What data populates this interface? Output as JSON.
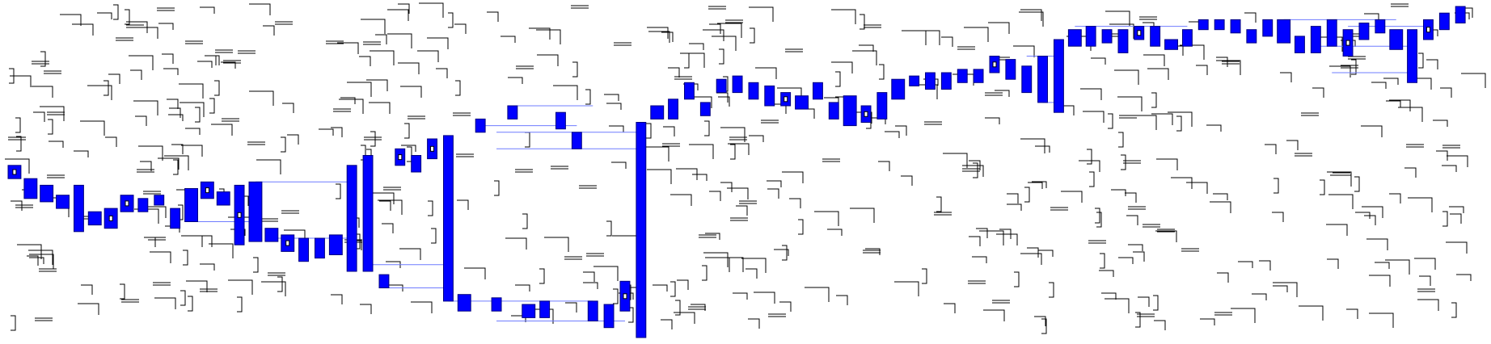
{
  "colors": {
    "background": "#ffffff",
    "bar_fill": "#0000ff",
    "bar_stroke": "#000080",
    "link": "#6f7cff",
    "glyph": "#000000"
  },
  "chart_data": {
    "type": "bar",
    "subtype": "floating-range-bars-with-connectors",
    "title": "",
    "xlabel": "",
    "ylabel": "",
    "xlim": [
      0,
      92
    ],
    "ylim": [
      0,
      100
    ],
    "grid": false,
    "legend": "none",
    "bars": [
      {
        "x": 0.5,
        "lo": 48,
        "hi": 52,
        "w": 0.8,
        "glyph": true
      },
      {
        "x": 1.5,
        "lo": 42,
        "hi": 48,
        "w": 0.8
      },
      {
        "x": 2.5,
        "lo": 41,
        "hi": 46,
        "w": 0.8
      },
      {
        "x": 3.5,
        "lo": 39,
        "hi": 43,
        "w": 0.8
      },
      {
        "x": 4.5,
        "lo": 32,
        "hi": 46,
        "w": 0.6
      },
      {
        "x": 5.5,
        "lo": 34,
        "hi": 38,
        "w": 0.8
      },
      {
        "x": 6.5,
        "lo": 33,
        "hi": 39,
        "w": 0.8,
        "glyph": true
      },
      {
        "x": 7.5,
        "lo": 38,
        "hi": 43,
        "w": 0.8,
        "glyph": true
      },
      {
        "x": 8.5,
        "lo": 38,
        "hi": 42,
        "w": 0.6
      },
      {
        "x": 9.5,
        "lo": 40,
        "hi": 43,
        "w": 0.6
      },
      {
        "x": 10.5,
        "lo": 33,
        "hi": 39,
        "w": 0.6
      },
      {
        "x": 11.5,
        "lo": 35,
        "hi": 45,
        "w": 0.8
      },
      {
        "x": 12.5,
        "lo": 42,
        "hi": 47,
        "w": 0.8,
        "glyph": true
      },
      {
        "x": 13.5,
        "lo": 40,
        "hi": 44,
        "w": 0.8
      },
      {
        "x": 14.5,
        "lo": 28,
        "hi": 46,
        "w": 0.6,
        "glyph": true
      },
      {
        "x": 15.5,
        "lo": 29,
        "hi": 47,
        "w": 0.8
      },
      {
        "x": 16.5,
        "lo": 29,
        "hi": 33,
        "w": 0.8
      },
      {
        "x": 17.5,
        "lo": 26,
        "hi": 31,
        "w": 0.8,
        "glyph": true
      },
      {
        "x": 18.5,
        "lo": 23,
        "hi": 30,
        "w": 0.6
      },
      {
        "x": 19.5,
        "lo": 24,
        "hi": 30,
        "w": 0.6
      },
      {
        "x": 20.5,
        "lo": 25,
        "hi": 31,
        "w": 0.8
      },
      {
        "x": 21.5,
        "lo": 20,
        "hi": 52,
        "w": 0.6
      },
      {
        "x": 22.5,
        "lo": 20,
        "hi": 55,
        "w": 0.6
      },
      {
        "x": 23.5,
        "lo": 15,
        "hi": 19,
        "w": 0.6
      },
      {
        "x": 24.5,
        "lo": 52,
        "hi": 57,
        "w": 0.6,
        "glyph": true
      },
      {
        "x": 25.5,
        "lo": 50,
        "hi": 55,
        "w": 0.6
      },
      {
        "x": 26.5,
        "lo": 54,
        "hi": 60,
        "w": 0.6,
        "glyph": true
      },
      {
        "x": 27.5,
        "lo": 11,
        "hi": 61,
        "w": 0.6
      },
      {
        "x": 28.5,
        "lo": 8,
        "hi": 13,
        "w": 0.8
      },
      {
        "x": 29.5,
        "lo": 62,
        "hi": 66,
        "w": 0.6
      },
      {
        "x": 30.5,
        "lo": 8,
        "hi": 12,
        "w": 0.6
      },
      {
        "x": 31.5,
        "lo": 66,
        "hi": 70,
        "w": 0.6
      },
      {
        "x": 32.5,
        "lo": 6,
        "hi": 10,
        "w": 0.8
      },
      {
        "x": 33.5,
        "lo": 6,
        "hi": 11,
        "w": 0.6
      },
      {
        "x": 34.5,
        "lo": 63,
        "hi": 68,
        "w": 0.6
      },
      {
        "x": 35.5,
        "lo": 57,
        "hi": 62,
        "w": 0.6
      },
      {
        "x": 36.5,
        "lo": 5,
        "hi": 11,
        "w": 0.6
      },
      {
        "x": 37.5,
        "lo": 3,
        "hi": 10,
        "w": 0.6
      },
      {
        "x": 38.5,
        "lo": 8,
        "hi": 17,
        "w": 0.6,
        "glyph": true
      },
      {
        "x": 39.5,
        "lo": 0,
        "hi": 65,
        "w": 0.6
      },
      {
        "x": 40.5,
        "lo": 66,
        "hi": 70,
        "w": 0.8
      },
      {
        "x": 41.5,
        "lo": 66,
        "hi": 72,
        "w": 0.6
      },
      {
        "x": 42.5,
        "lo": 72,
        "hi": 77,
        "w": 0.6
      },
      {
        "x": 43.5,
        "lo": 67,
        "hi": 71,
        "w": 0.6
      },
      {
        "x": 44.5,
        "lo": 74,
        "hi": 78,
        "w": 0.6
      },
      {
        "x": 45.5,
        "lo": 74,
        "hi": 79,
        "w": 0.6
      },
      {
        "x": 46.5,
        "lo": 72,
        "hi": 77,
        "w": 0.6
      },
      {
        "x": 47.5,
        "lo": 70,
        "hi": 76,
        "w": 0.6
      },
      {
        "x": 48.5,
        "lo": 70,
        "hi": 74,
        "w": 0.6,
        "glyph": true
      },
      {
        "x": 49.5,
        "lo": 69,
        "hi": 73,
        "w": 0.8
      },
      {
        "x": 50.5,
        "lo": 72,
        "hi": 77,
        "w": 0.6
      },
      {
        "x": 51.5,
        "lo": 66,
        "hi": 71,
        "w": 0.6
      },
      {
        "x": 52.5,
        "lo": 64,
        "hi": 73,
        "w": 0.8
      },
      {
        "x": 53.5,
        "lo": 65,
        "hi": 70,
        "w": 0.6,
        "glyph": true
      },
      {
        "x": 54.5,
        "lo": 66,
        "hi": 74,
        "w": 0.6
      },
      {
        "x": 55.5,
        "lo": 72,
        "hi": 78,
        "w": 0.8
      },
      {
        "x": 56.5,
        "lo": 76,
        "hi": 79,
        "w": 0.6
      },
      {
        "x": 57.5,
        "lo": 75,
        "hi": 80,
        "w": 0.6
      },
      {
        "x": 58.5,
        "lo": 75,
        "hi": 80,
        "w": 0.6
      },
      {
        "x": 59.5,
        "lo": 77,
        "hi": 81,
        "w": 0.6
      },
      {
        "x": 60.5,
        "lo": 77,
        "hi": 81,
        "w": 0.6
      },
      {
        "x": 61.5,
        "lo": 80,
        "hi": 85,
        "w": 0.6,
        "glyph": true
      },
      {
        "x": 62.5,
        "lo": 78,
        "hi": 84,
        "w": 0.6
      },
      {
        "x": 63.5,
        "lo": 74,
        "hi": 82,
        "w": 0.6
      },
      {
        "x": 64.5,
        "lo": 71,
        "hi": 85,
        "w": 0.6
      },
      {
        "x": 65.5,
        "lo": 68,
        "hi": 90,
        "w": 0.6
      },
      {
        "x": 66.5,
        "lo": 88,
        "hi": 93,
        "w": 0.8
      },
      {
        "x": 67.5,
        "lo": 88,
        "hi": 94,
        "w": 0.6
      },
      {
        "x": 68.5,
        "lo": 89,
        "hi": 93,
        "w": 0.6
      },
      {
        "x": 69.5,
        "lo": 86,
        "hi": 93,
        "w": 0.6
      },
      {
        "x": 70.5,
        "lo": 90,
        "hi": 94,
        "w": 0.6,
        "glyph": true
      },
      {
        "x": 71.5,
        "lo": 88,
        "hi": 94,
        "w": 0.6
      },
      {
        "x": 72.5,
        "lo": 87,
        "hi": 90,
        "w": 0.8
      },
      {
        "x": 73.5,
        "lo": 88,
        "hi": 93,
        "w": 0.6
      },
      {
        "x": 74.5,
        "lo": 93,
        "hi": 96,
        "w": 0.6
      },
      {
        "x": 75.5,
        "lo": 93,
        "hi": 96,
        "w": 0.6
      },
      {
        "x": 76.5,
        "lo": 92,
        "hi": 96,
        "w": 0.6
      },
      {
        "x": 77.5,
        "lo": 89,
        "hi": 93,
        "w": 0.6
      },
      {
        "x": 78.5,
        "lo": 91,
        "hi": 96,
        "w": 0.6
      },
      {
        "x": 79.5,
        "lo": 89,
        "hi": 96,
        "w": 0.8
      },
      {
        "x": 80.5,
        "lo": 86,
        "hi": 91,
        "w": 0.6
      },
      {
        "x": 81.5,
        "lo": 86,
        "hi": 94,
        "w": 0.6
      },
      {
        "x": 82.5,
        "lo": 88,
        "hi": 96,
        "w": 0.6
      },
      {
        "x": 83.5,
        "lo": 85,
        "hi": 93,
        "w": 0.6,
        "glyph": true
      },
      {
        "x": 84.5,
        "lo": 90,
        "hi": 95,
        "w": 0.6
      },
      {
        "x": 85.5,
        "lo": 92,
        "hi": 96,
        "w": 0.6
      },
      {
        "x": 86.5,
        "lo": 87,
        "hi": 93,
        "w": 0.8
      },
      {
        "x": 87.5,
        "lo": 77,
        "hi": 93,
        "w": 0.6
      },
      {
        "x": 88.5,
        "lo": 90,
        "hi": 96,
        "w": 0.6,
        "glyph": true
      },
      {
        "x": 89.5,
        "lo": 93,
        "hi": 98,
        "w": 0.6
      },
      {
        "x": 90.5,
        "lo": 95,
        "hi": 100,
        "w": 0.6
      }
    ],
    "links": [
      {
        "x1": 15.5,
        "y1": 47,
        "x2": 21.5,
        "y2": 47
      },
      {
        "x1": 11.5,
        "y1": 35,
        "x2": 15.5,
        "y2": 35
      },
      {
        "x1": 16.5,
        "y1": 30,
        "x2": 21.5,
        "y2": 30
      },
      {
        "x1": 22.5,
        "y1": 22,
        "x2": 27.5,
        "y2": 22
      },
      {
        "x1": 23.5,
        "y1": 15,
        "x2": 27.5,
        "y2": 15
      },
      {
        "x1": 27.5,
        "y1": 11,
        "x2": 36.5,
        "y2": 11
      },
      {
        "x1": 29.5,
        "y1": 64,
        "x2": 35.5,
        "y2": 64
      },
      {
        "x1": 30.5,
        "y1": 62,
        "x2": 39.5,
        "y2": 62
      },
      {
        "x1": 30.5,
        "y1": 57,
        "x2": 39.5,
        "y2": 57
      },
      {
        "x1": 31.5,
        "y1": 70,
        "x2": 36.5,
        "y2": 70
      },
      {
        "x1": 30.5,
        "y1": 5,
        "x2": 38.5,
        "y2": 5
      },
      {
        "x1": 63.5,
        "y1": 85,
        "x2": 65.5,
        "y2": 85
      },
      {
        "x1": 64.5,
        "y1": 71,
        "x2": 65.5,
        "y2": 71
      },
      {
        "x1": 66.5,
        "y1": 94,
        "x2": 73.5,
        "y2": 94
      },
      {
        "x1": 79.5,
        "y1": 96,
        "x2": 86.5,
        "y2": 96
      },
      {
        "x1": 81.5,
        "y1": 88,
        "x2": 87.5,
        "y2": 88
      },
      {
        "x1": 82.5,
        "y1": 80,
        "x2": 87.5,
        "y2": 80
      },
      {
        "x1": 83.5,
        "y1": 94,
        "x2": 88.5,
        "y2": 94
      }
    ]
  }
}
